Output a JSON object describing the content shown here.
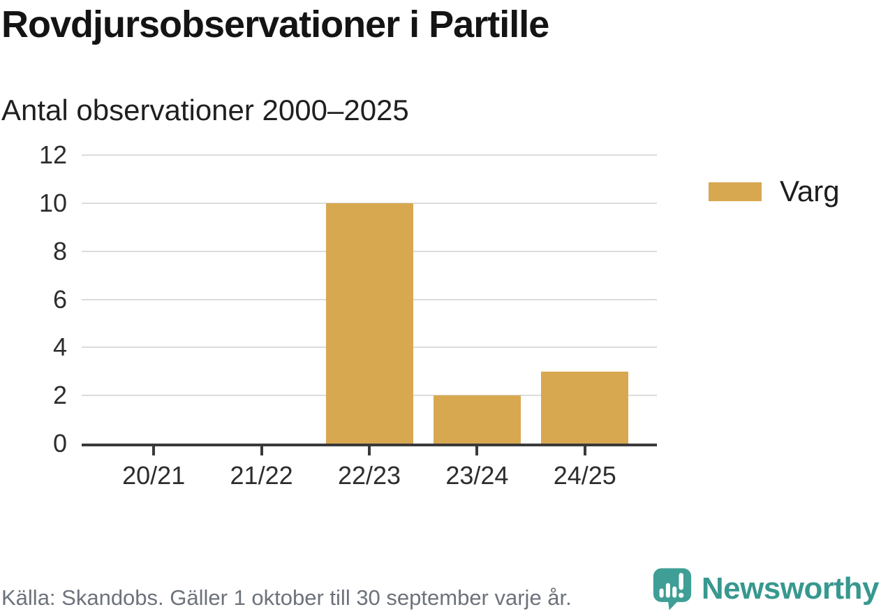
{
  "header": {
    "title": "Rovdjursobservationer i Partille",
    "subtitle": "Antal observationer 2000–2025"
  },
  "chart_data": {
    "type": "bar",
    "title": "Rovdjursobservationer i Partille",
    "subtitle": "Antal observationer 2000–2025",
    "categories": [
      "20/21",
      "21/22",
      "22/23",
      "23/24",
      "24/25"
    ],
    "series": [
      {
        "name": "Varg",
        "color": "#d8a851",
        "values": [
          0,
          0,
          10,
          2,
          3
        ]
      }
    ],
    "xlabel": "",
    "ylabel": "",
    "ylim": [
      0,
      12
    ],
    "yticks": [
      0,
      2,
      4,
      6,
      8,
      10,
      12
    ],
    "grid": true,
    "legend_position": "right"
  },
  "footer": {
    "source": "Källa: Skandobs. Gäller 1 oktober till 30 september varje år.",
    "brand": "Newsworthy"
  },
  "colors": {
    "bar": "#d8a851",
    "brand_teal": "#3f9e96",
    "axis": "#3a3a3a",
    "gridline": "#dcdcdc",
    "footer_text": "#6d727b"
  }
}
